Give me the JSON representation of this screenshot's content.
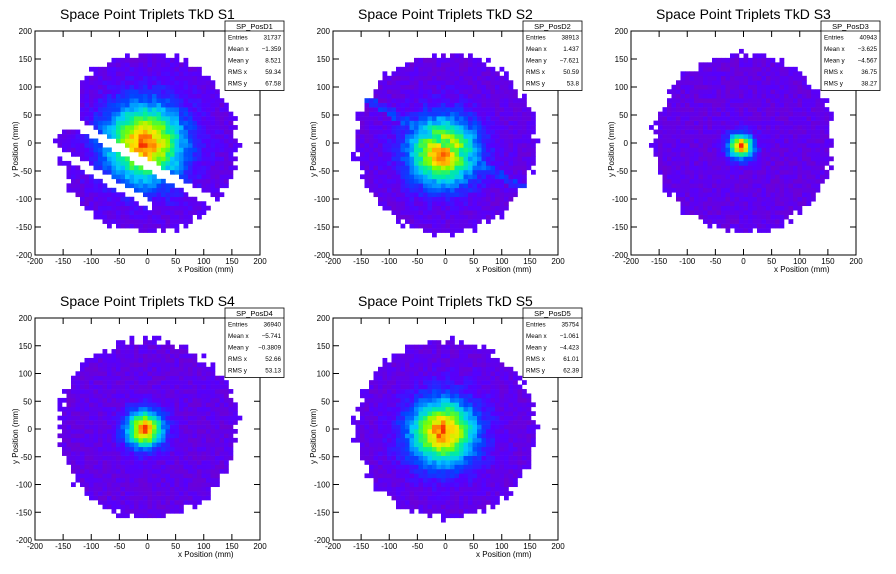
{
  "chart_data": [
    {
      "type": "heatmap",
      "title": "Space Point Triplets TkD S1",
      "xlabel": "x Position (mm)",
      "ylabel": "y Position (mm)",
      "xlim": [
        -200,
        200
      ],
      "ylim": [
        -200,
        200
      ],
      "xticks": [
        -200,
        -150,
        -100,
        -50,
        0,
        50,
        100,
        150,
        200
      ],
      "yticks": [
        -200,
        -150,
        -100,
        -50,
        0,
        50,
        100,
        150,
        200
      ],
      "colormap": "rainbow",
      "distribution": {
        "peak_x": -5,
        "peak_y": 0,
        "footprint": "disc_with_diagonal_gap",
        "disc_radius": 160,
        "core_sigma": 50
      },
      "stats": {
        "name": "SP_PosD1",
        "rows": [
          [
            "Entries",
            "31737"
          ],
          [
            "Mean x",
            "−1.359"
          ],
          [
            "Mean y",
            "8.521"
          ],
          [
            "RMS x",
            "59.34"
          ],
          [
            "RMS y",
            "67.58"
          ]
        ]
      }
    },
    {
      "type": "heatmap",
      "title": "Space Point Triplets TkD S2",
      "xlabel": "x Position (mm)",
      "ylabel": "y Position (mm)",
      "xlim": [
        -200,
        200
      ],
      "ylim": [
        -200,
        200
      ],
      "xticks": [
        -200,
        -150,
        -100,
        -50,
        0,
        50,
        100,
        150,
        200
      ],
      "yticks": [
        -200,
        -150,
        -100,
        -50,
        0,
        50,
        100,
        150,
        200
      ],
      "colormap": "rainbow",
      "distribution": {
        "peak_x": -5,
        "peak_y": -15,
        "footprint": "disc_with_diagonal_stripe",
        "disc_radius": 160,
        "core_sigma": 42
      },
      "stats": {
        "name": "SP_PosD2",
        "rows": [
          [
            "Entries",
            "38913"
          ],
          [
            "Mean x",
            "1.437"
          ],
          [
            "Mean y",
            "−7.621"
          ],
          [
            "RMS x",
            "50.59"
          ],
          [
            "RMS y",
            "53.8"
          ]
        ]
      }
    },
    {
      "type": "heatmap",
      "title": "Space Point Triplets TkD S3",
      "xlabel": "x Position (mm)",
      "ylabel": "y Position (mm)",
      "xlim": [
        -200,
        200
      ],
      "ylim": [
        -200,
        200
      ],
      "xticks": [
        -200,
        -150,
        -100,
        -50,
        0,
        50,
        100,
        150,
        200
      ],
      "yticks": [
        -200,
        -150,
        -100,
        -50,
        0,
        50,
        100,
        150,
        200
      ],
      "colormap": "rainbow",
      "distribution": {
        "peak_x": -5,
        "peak_y": -5,
        "footprint": "disc",
        "disc_radius": 160,
        "core_sigma": 16
      },
      "stats": {
        "name": "SP_PosD3",
        "rows": [
          [
            "Entries",
            "40943"
          ],
          [
            "Mean x",
            "−3.625"
          ],
          [
            "Mean y",
            "−4.567"
          ],
          [
            "RMS x",
            "36.75"
          ],
          [
            "RMS y",
            "38.27"
          ]
        ]
      }
    },
    {
      "type": "heatmap",
      "title": "Space Point Triplets TkD S4",
      "xlabel": "x Position (mm)",
      "ylabel": "y Position (mm)",
      "xlim": [
        -200,
        200
      ],
      "ylim": [
        -200,
        200
      ],
      "xticks": [
        -200,
        -150,
        -100,
        -50,
        0,
        50,
        100,
        150,
        200
      ],
      "yticks": [
        -200,
        -150,
        -100,
        -50,
        0,
        50,
        100,
        150,
        200
      ],
      "colormap": "rainbow",
      "distribution": {
        "peak_x": -5,
        "peak_y": 0,
        "footprint": "disc",
        "disc_radius": 160,
        "core_sigma": 24
      },
      "stats": {
        "name": "SP_PosD4",
        "rows": [
          [
            "Entries",
            "36940"
          ],
          [
            "Mean x",
            "−5.741"
          ],
          [
            "Mean y",
            "−0.3809"
          ],
          [
            "RMS x",
            "52.66"
          ],
          [
            "RMS y",
            "53.13"
          ]
        ]
      }
    },
    {
      "type": "heatmap",
      "title": "Space Point Triplets TkD S5",
      "xlabel": "x Position (mm)",
      "ylabel": "y Position (mm)",
      "xlim": [
        -200,
        200
      ],
      "ylim": [
        -200,
        200
      ],
      "xticks": [
        -200,
        -150,
        -100,
        -50,
        0,
        50,
        100,
        150,
        200
      ],
      "yticks": [
        -200,
        -150,
        -100,
        -50,
        0,
        50,
        100,
        150,
        200
      ],
      "colormap": "rainbow",
      "distribution": {
        "peak_x": -5,
        "peak_y": -5,
        "footprint": "disc",
        "disc_radius": 160,
        "core_sigma": 42
      },
      "stats": {
        "name": "SP_PosD5",
        "rows": [
          [
            "Entries",
            "35754"
          ],
          [
            "Mean x",
            "−1.061"
          ],
          [
            "Mean y",
            "−4.423"
          ],
          [
            "RMS x",
            "61.01"
          ],
          [
            "RMS y",
            "62.39"
          ]
        ]
      }
    }
  ]
}
